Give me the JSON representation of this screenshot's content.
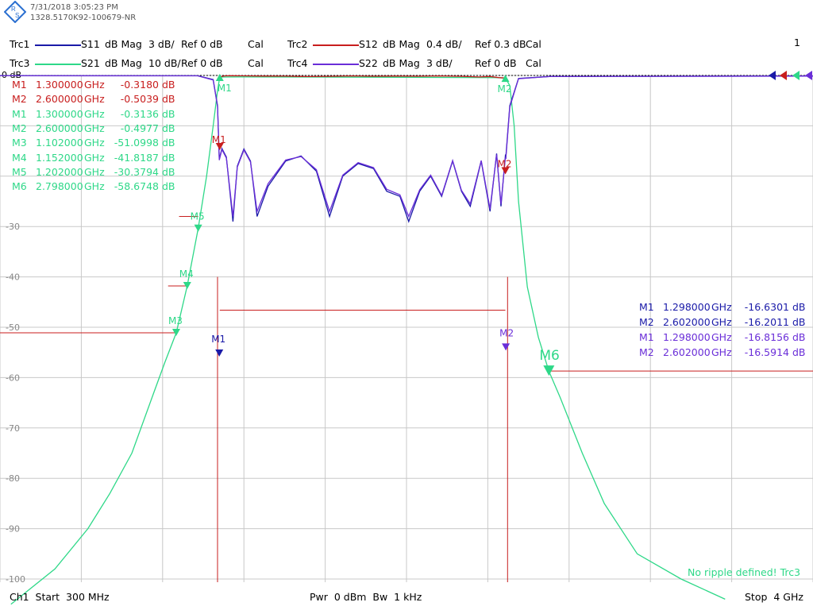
{
  "header": {
    "timestamp": "7/31/2018 3:05:23 PM",
    "device_id": "1328.5170K92-100679-NR",
    "window_number": "1"
  },
  "traces": [
    {
      "id": "Trc1",
      "param": "S11",
      "format": "dB Mag",
      "scale": "3 dB/",
      "ref": "Ref 0 dB",
      "cal": "Cal",
      "color": "#1a1aa8"
    },
    {
      "id": "Trc2",
      "param": "S12",
      "format": "dB Mag",
      "scale": "0.4 dB/",
      "ref": "Ref 0.3 dB",
      "cal": "Cal",
      "color": "#c81e1e"
    },
    {
      "id": "Trc3",
      "param": "S21",
      "format": "dB Mag",
      "scale": "10 dB/",
      "ref": "Ref 0 dB",
      "cal": "Cal",
      "color": "#2ed888"
    },
    {
      "id": "Trc4",
      "param": "S22",
      "format": "dB Mag",
      "scale": "3 dB/",
      "ref": "Ref 0 dB",
      "cal": "Cal",
      "color": "#6a2ed8"
    }
  ],
  "markers_left": [
    {
      "name": "M1",
      "freq": "1.300000",
      "unit": "GHz",
      "value": "-0.3180",
      "vunit": "dB",
      "trace": "Trc2",
      "color": "#c81e1e"
    },
    {
      "name": "M2",
      "freq": "2.600000",
      "unit": "GHz",
      "value": "-0.5039",
      "vunit": "dB",
      "trace": "Trc2",
      "color": "#c81e1e"
    },
    {
      "name": "M1",
      "freq": "1.300000",
      "unit": "GHz",
      "value": "-0.3136",
      "vunit": "dB",
      "trace": "Trc3",
      "color": "#2ed888"
    },
    {
      "name": "M2",
      "freq": "2.600000",
      "unit": "GHz",
      "value": "-0.4977",
      "vunit": "dB",
      "trace": "Trc3",
      "color": "#2ed888"
    },
    {
      "name": "M3",
      "freq": "1.102000",
      "unit": "GHz",
      "value": "-51.0998",
      "vunit": "dB",
      "trace": "Trc3",
      "color": "#2ed888"
    },
    {
      "name": "M4",
      "freq": "1.152000",
      "unit": "GHz",
      "value": "-41.8187",
      "vunit": "dB",
      "trace": "Trc3",
      "color": "#2ed888"
    },
    {
      "name": "M5",
      "freq": "1.202000",
      "unit": "GHz",
      "value": "-30.3794",
      "vunit": "dB",
      "trace": "Trc3",
      "color": "#2ed888"
    },
    {
      "name": "M6",
      "freq": "2.798000",
      "unit": "GHz",
      "value": "-58.6748",
      "vunit": "dB",
      "trace": "Trc3",
      "color": "#2ed888"
    }
  ],
  "markers_right": [
    {
      "name": "M1",
      "freq": "1.298000",
      "unit": "GHz",
      "value": "-16.6301",
      "vunit": "dB",
      "trace": "Trc1",
      "color": "#1a1aa8"
    },
    {
      "name": "M2",
      "freq": "2.602000",
      "unit": "GHz",
      "value": "-16.2011",
      "vunit": "dB",
      "trace": "Trc1",
      "color": "#1a1aa8"
    },
    {
      "name": "M1",
      "freq": "1.298000",
      "unit": "GHz",
      "value": "-16.8156",
      "vunit": "dB",
      "trace": "Trc4",
      "color": "#6a2ed8"
    },
    {
      "name": "M2",
      "freq": "2.602000",
      "unit": "GHz",
      "value": "-16.5914",
      "vunit": "dB",
      "trace": "Trc4",
      "color": "#6a2ed8"
    }
  ],
  "status_message": "No ripple defined! Trc3",
  "footer": {
    "left": "Ch1  Start  300 MHz",
    "center": "Pwr  0 dBm  Bw  1 kHz",
    "right": "Stop  4 GHz"
  },
  "chart_data": {
    "type": "line",
    "title": "",
    "xlabel": "",
    "ylabel": "",
    "xlim_ghz": [
      0.3,
      4.0
    ],
    "ylim_db": [
      -100,
      0
    ],
    "ref_label": "0 dB",
    "y_ticks": [
      "-30",
      "-40",
      "-50",
      "-60",
      "-70",
      "-80",
      "-90",
      "-100"
    ],
    "grid": true,
    "series": [
      {
        "name": "Trc3",
        "color": "#2ed888",
        "points_ghz_db": [
          [
            0.35,
            -105
          ],
          [
            0.55,
            -98
          ],
          [
            0.7,
            -90
          ],
          [
            0.8,
            -83
          ],
          [
            0.9,
            -75
          ],
          [
            1.0,
            -63
          ],
          [
            1.05,
            -57
          ],
          [
            1.102,
            -51.1
          ],
          [
            1.152,
            -41.8
          ],
          [
            1.202,
            -30.4
          ],
          [
            1.24,
            -20
          ],
          [
            1.27,
            -10
          ],
          [
            1.29,
            -3
          ],
          [
            1.3,
            -0.31
          ],
          [
            1.4,
            -0.28
          ],
          [
            2.0,
            -0.35
          ],
          [
            2.55,
            -0.42
          ],
          [
            2.6,
            -0.5
          ],
          [
            2.62,
            -2
          ],
          [
            2.64,
            -10
          ],
          [
            2.66,
            -25
          ],
          [
            2.7,
            -42
          ],
          [
            2.75,
            -52
          ],
          [
            2.798,
            -58.7
          ],
          [
            2.85,
            -64
          ],
          [
            2.95,
            -75
          ],
          [
            3.05,
            -85
          ],
          [
            3.2,
            -95
          ],
          [
            3.4,
            -100
          ],
          [
            3.6,
            -104
          ]
        ]
      },
      {
        "name": "Trc2",
        "color": "#c81e1e",
        "points_ghz_db": [
          [
            1.3,
            -0.32
          ],
          [
            1.32,
            -0.1
          ],
          [
            1.35,
            -0.05
          ],
          [
            1.4,
            -0.08
          ],
          [
            1.5,
            -0.12
          ],
          [
            1.6,
            -0.14
          ],
          [
            1.7,
            -0.22
          ],
          [
            1.8,
            -0.18
          ],
          [
            1.9,
            -0.1
          ],
          [
            2.0,
            -0.16
          ],
          [
            2.1,
            -0.12
          ],
          [
            2.2,
            -0.16
          ],
          [
            2.3,
            -0.1
          ],
          [
            2.4,
            -0.18
          ],
          [
            2.48,
            -0.3
          ],
          [
            2.53,
            -0.2
          ],
          [
            2.57,
            -0.42
          ],
          [
            2.6,
            -0.5
          ]
        ]
      },
      {
        "name": "Trc1",
        "color": "#1a1aa8",
        "points_ghz_db": [
          [
            0.3,
            -0.05
          ],
          [
            1.2,
            -0.06
          ],
          [
            1.27,
            -0.8
          ],
          [
            1.29,
            -6
          ],
          [
            1.298,
            -16.63
          ],
          [
            1.31,
            -14.5
          ],
          [
            1.33,
            -16.2
          ],
          [
            1.36,
            -29
          ],
          [
            1.38,
            -18
          ],
          [
            1.41,
            -14.6
          ],
          [
            1.44,
            -17
          ],
          [
            1.47,
            -28
          ],
          [
            1.52,
            -22
          ],
          [
            1.6,
            -17
          ],
          [
            1.67,
            -16.0
          ],
          [
            1.74,
            -19
          ],
          [
            1.8,
            -28
          ],
          [
            1.86,
            -20
          ],
          [
            1.93,
            -17.5
          ],
          [
            2.0,
            -18.5
          ],
          [
            2.06,
            -23
          ],
          [
            2.12,
            -24
          ],
          [
            2.16,
            -29
          ],
          [
            2.21,
            -23
          ],
          [
            2.26,
            -20
          ],
          [
            2.31,
            -24
          ],
          [
            2.36,
            -17
          ],
          [
            2.4,
            -23
          ],
          [
            2.44,
            -26
          ],
          [
            2.49,
            -17
          ],
          [
            2.53,
            -27
          ],
          [
            2.56,
            -15.5
          ],
          [
            2.58,
            -26
          ],
          [
            2.6,
            -16
          ],
          [
            2.602,
            -16.2
          ],
          [
            2.62,
            -6
          ],
          [
            2.66,
            -0.6
          ],
          [
            2.8,
            -0.2
          ],
          [
            4.0,
            -0.1
          ]
        ]
      },
      {
        "name": "Trc4",
        "color": "#6a2ed8",
        "points_ghz_db": [
          [
            0.3,
            -0.06
          ],
          [
            1.2,
            -0.08
          ],
          [
            1.27,
            -0.9
          ],
          [
            1.29,
            -6.2
          ],
          [
            1.298,
            -16.82
          ],
          [
            1.31,
            -14.7
          ],
          [
            1.33,
            -16.4
          ],
          [
            1.36,
            -28
          ],
          [
            1.38,
            -18.2
          ],
          [
            1.41,
            -14.8
          ],
          [
            1.44,
            -17.2
          ],
          [
            1.47,
            -27
          ],
          [
            1.52,
            -21.5
          ],
          [
            1.6,
            -16.8
          ],
          [
            1.67,
            -16.1
          ],
          [
            1.74,
            -18.7
          ],
          [
            1.8,
            -27
          ],
          [
            1.86,
            -19.8
          ],
          [
            1.93,
            -17.3
          ],
          [
            2.0,
            -18.3
          ],
          [
            2.06,
            -22.6
          ],
          [
            2.12,
            -23.7
          ],
          [
            2.16,
            -28
          ],
          [
            2.21,
            -22.7
          ],
          [
            2.26,
            -19.8
          ],
          [
            2.31,
            -23.8
          ],
          [
            2.36,
            -16.9
          ],
          [
            2.4,
            -22.8
          ],
          [
            2.44,
            -25.5
          ],
          [
            2.49,
            -16.9
          ],
          [
            2.53,
            -26.5
          ],
          [
            2.56,
            -15.7
          ],
          [
            2.58,
            -25.5
          ],
          [
            2.6,
            -16.3
          ],
          [
            2.602,
            -16.59
          ],
          [
            2.62,
            -6.3
          ],
          [
            2.66,
            -0.65
          ],
          [
            2.8,
            -0.22
          ],
          [
            4.0,
            -0.12
          ]
        ]
      }
    ]
  }
}
